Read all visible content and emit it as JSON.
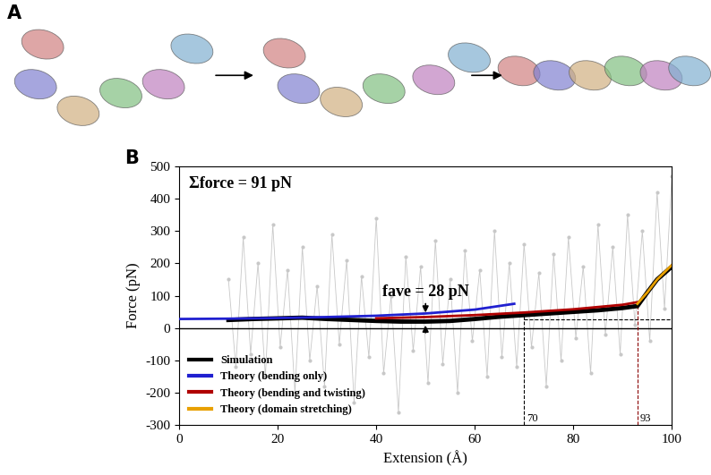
{
  "panels": [
    "A",
    "B"
  ],
  "chart_data": {
    "type": "line",
    "x_label": "Extension (Å)",
    "y_label": "Force (pN)",
    "xlim": [
      0,
      100
    ],
    "xticks": [
      0,
      20,
      40,
      60,
      80,
      100
    ],
    "ylim": [
      -300,
      500
    ],
    "yticks": [
      -300,
      -200,
      -100,
      0,
      100,
      200,
      300,
      400,
      500
    ],
    "legend": "lower left",
    "sum_text": "Σforce = 91 pN",
    "fave": {
      "label": "fave = 28 pN",
      "value": 28,
      "x": 50
    },
    "baseline": 0,
    "hline": {
      "y": 28,
      "from": 70,
      "to": 100
    },
    "vlines": [
      {
        "x": 70,
        "top": 45,
        "label": "70",
        "color": "#000000"
      },
      {
        "x": 93,
        "top": 80,
        "label": "93",
        "color": "#8b0000"
      }
    ],
    "series": [
      {
        "color": "#c8c8c8",
        "marker": "o",
        "x": [
          10,
          11.5,
          13,
          14.5,
          16,
          17.5,
          19,
          20.5,
          22,
          23.5,
          25,
          26.5,
          28,
          29.5,
          31,
          32.5,
          34,
          35.5,
          37,
          38.5,
          40,
          41.5,
          43,
          44.5,
          46,
          47.5,
          49,
          50.5,
          52,
          53.5,
          55,
          56.5,
          58,
          59.5,
          61,
          62.5,
          64,
          65.5,
          67,
          68.5,
          70,
          71.5,
          73,
          74.5,
          76,
          77.5,
          79,
          80.5,
          82,
          83.5,
          85,
          86.5,
          88,
          89.5,
          91,
          92.5,
          94,
          95.5,
          97,
          98.5,
          100
        ],
        "values": [
          150,
          -120,
          280,
          -80,
          200,
          -150,
          320,
          -60,
          180,
          -200,
          250,
          -100,
          130,
          -180,
          290,
          -50,
          210,
          -230,
          160,
          -90,
          340,
          -140,
          100,
          -260,
          220,
          -70,
          190,
          -170,
          270,
          -110,
          150,
          -200,
          240,
          -40,
          180,
          -150,
          300,
          -90,
          200,
          -120,
          260,
          -60,
          170,
          -180,
          230,
          -100,
          280,
          -30,
          190,
          -140,
          320,
          -20,
          250,
          -80,
          350,
          10,
          300,
          -40,
          420,
          60,
          470
        ]
      },
      {
        "name": "Simulation",
        "color": "#000000",
        "x": [
          10,
          15,
          20,
          25,
          30,
          35,
          40,
          45,
          50,
          55,
          60,
          65,
          70,
          75,
          80,
          85,
          90,
          93,
          95,
          97,
          100
        ],
        "values": [
          25,
          28,
          30,
          32,
          28,
          25,
          22,
          20,
          20,
          22,
          28,
          35,
          40,
          45,
          50,
          55,
          62,
          68,
          110,
          150,
          190
        ]
      },
      {
        "name": "Theory (bending only)",
        "color": "#2020d0",
        "x": [
          0,
          10,
          20,
          30,
          40,
          50,
          60,
          68
        ],
        "values": [
          28,
          29,
          31,
          34,
          38,
          45,
          57,
          75
        ]
      },
      {
        "name": "Theory (bending and twisting)",
        "color": "#b00000",
        "x": [
          40,
          50,
          60,
          70,
          80,
          90,
          93
        ],
        "values": [
          30,
          34,
          40,
          48,
          58,
          72,
          80
        ]
      },
      {
        "name": "Theory (domain stretching)",
        "color": "#e8a000",
        "x": [
          93,
          95,
          97,
          100
        ],
        "values": [
          75,
          110,
          150,
          195
        ]
      }
    ]
  }
}
